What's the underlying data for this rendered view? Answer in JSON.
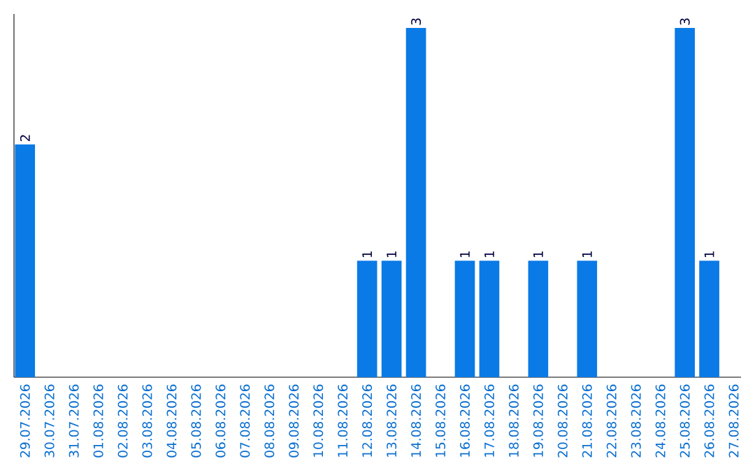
{
  "chart_data": {
    "type": "bar",
    "tick_labels": "x",
    "color": "#0a7ae6",
    "categories": [
      "29.07.2026",
      "30.07.2026",
      "31.07.2026",
      "01.08.2026",
      "02.08.2026",
      "03.08.2026",
      "04.08.2026",
      "05.08.2026",
      "06.08.2026",
      "07.08.2026",
      "08.08.2026",
      "09.08.2026",
      "10.08.2026",
      "11.08.2026",
      "12.08.2026",
      "13.08.2026",
      "14.08.2026",
      "15.08.2026",
      "16.08.2026",
      "17.08.2026",
      "18.08.2026",
      "19.08.2026",
      "20.08.2026",
      "21.08.2026",
      "22.08.2026",
      "23.08.2026",
      "24.08.2026",
      "25.08.2026",
      "26.08.2026",
      "27.08.2026"
    ],
    "values": [
      2,
      0,
      0,
      0,
      0,
      0,
      0,
      0,
      0,
      0,
      0,
      0,
      0,
      0,
      1,
      1,
      3,
      0,
      1,
      1,
      0,
      1,
      0,
      1,
      0,
      0,
      0,
      3,
      1,
      0
    ],
    "value_labels": [
      "2",
      null,
      null,
      null,
      null,
      null,
      null,
      null,
      null,
      null,
      null,
      null,
      null,
      null,
      "1",
      "1",
      "3",
      null,
      "1",
      "1",
      null,
      "1",
      null,
      "1",
      null,
      null,
      null,
      "3",
      "1",
      null
    ]
  }
}
